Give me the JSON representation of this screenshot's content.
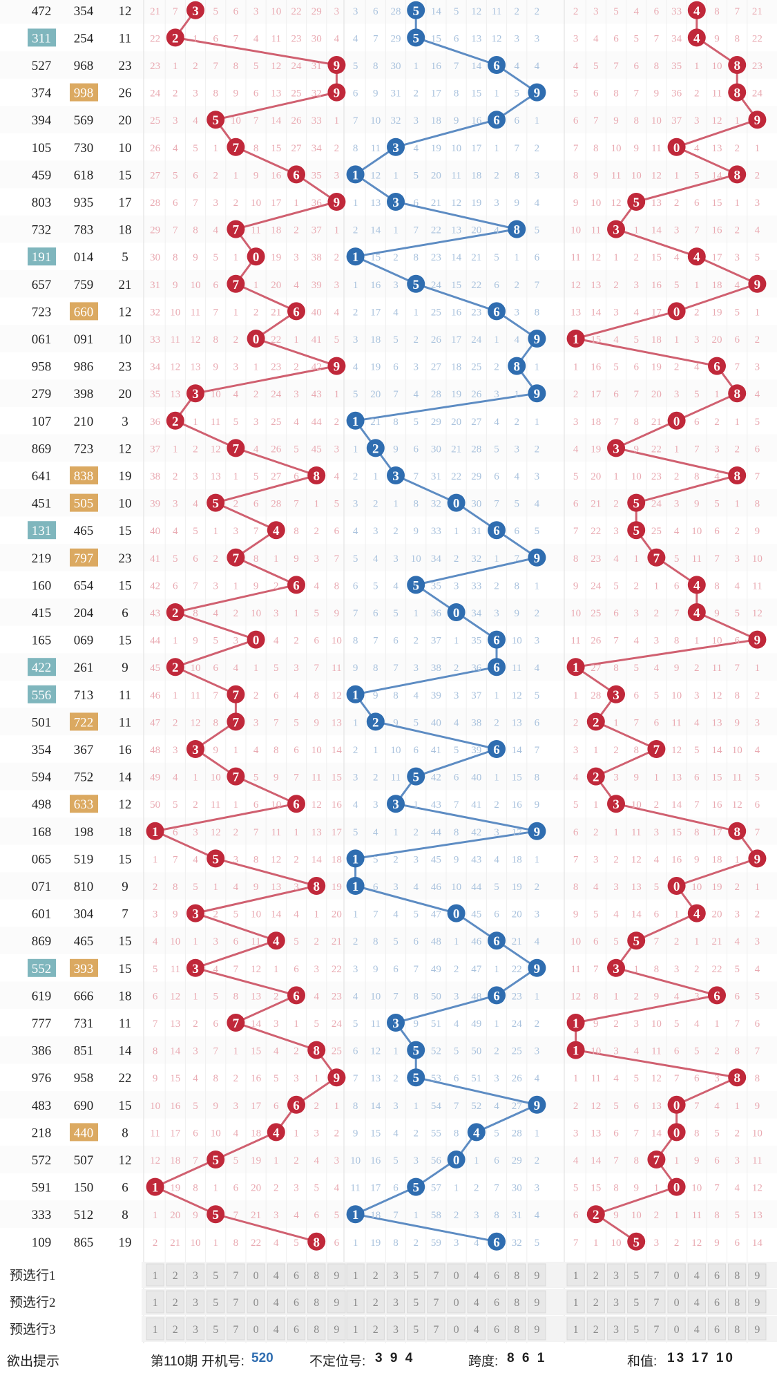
{
  "chart_data": {
    "type": "line",
    "rows": [
      {
        "a": "472",
        "b": "354",
        "s": "12",
        "d": [
          3,
          5,
          4
        ],
        "ha": false,
        "hb": false
      },
      {
        "a": "311",
        "b": "254",
        "s": "11",
        "d": [
          2,
          5,
          4
        ],
        "ha": true,
        "hb": false
      },
      {
        "a": "527",
        "b": "968",
        "s": "23",
        "d": [
          9,
          6,
          8
        ],
        "ha": false,
        "hb": false
      },
      {
        "a": "374",
        "b": "998",
        "s": "26",
        "d": [
          9,
          9,
          8
        ],
        "ha": false,
        "hb": true
      },
      {
        "a": "394",
        "b": "569",
        "s": "20",
        "d": [
          5,
          6,
          9
        ],
        "ha": false,
        "hb": false
      },
      {
        "a": "105",
        "b": "730",
        "s": "10",
        "d": [
          7,
          3,
          0
        ],
        "ha": false,
        "hb": false
      },
      {
        "a": "459",
        "b": "618",
        "s": "15",
        "d": [
          6,
          1,
          8
        ],
        "ha": false,
        "hb": false
      },
      {
        "a": "803",
        "b": "935",
        "s": "17",
        "d": [
          9,
          3,
          5
        ],
        "ha": false,
        "hb": false
      },
      {
        "a": "732",
        "b": "783",
        "s": "18",
        "d": [
          7,
          8,
          3
        ],
        "ha": false,
        "hb": false
      },
      {
        "a": "191",
        "b": "014",
        "s": "5",
        "d": [
          0,
          1,
          4
        ],
        "ha": true,
        "hb": false
      },
      {
        "a": "657",
        "b": "759",
        "s": "21",
        "d": [
          7,
          5,
          9
        ],
        "ha": false,
        "hb": false
      },
      {
        "a": "723",
        "b": "660",
        "s": "12",
        "d": [
          6,
          6,
          0
        ],
        "ha": false,
        "hb": true
      },
      {
        "a": "061",
        "b": "091",
        "s": "10",
        "d": [
          0,
          9,
          1
        ],
        "ha": false,
        "hb": false
      },
      {
        "a": "958",
        "b": "986",
        "s": "23",
        "d": [
          9,
          8,
          6
        ],
        "ha": false,
        "hb": false
      },
      {
        "a": "279",
        "b": "398",
        "s": "20",
        "d": [
          3,
          9,
          8
        ],
        "ha": false,
        "hb": false
      },
      {
        "a": "107",
        "b": "210",
        "s": "3",
        "d": [
          2,
          1,
          0
        ],
        "ha": false,
        "hb": false
      },
      {
        "a": "869",
        "b": "723",
        "s": "12",
        "d": [
          7,
          2,
          3
        ],
        "ha": false,
        "hb": false
      },
      {
        "a": "641",
        "b": "838",
        "s": "19",
        "d": [
          8,
          3,
          8
        ],
        "ha": false,
        "hb": true
      },
      {
        "a": "451",
        "b": "505",
        "s": "10",
        "d": [
          5,
          0,
          5
        ],
        "ha": false,
        "hb": true
      },
      {
        "a": "131",
        "b": "465",
        "s": "15",
        "d": [
          4,
          6,
          5
        ],
        "ha": true,
        "hb": false
      },
      {
        "a": "219",
        "b": "797",
        "s": "23",
        "d": [
          7,
          9,
          7
        ],
        "ha": false,
        "hb": true
      },
      {
        "a": "160",
        "b": "654",
        "s": "15",
        "d": [
          6,
          5,
          4
        ],
        "ha": false,
        "hb": false
      },
      {
        "a": "415",
        "b": "204",
        "s": "6",
        "d": [
          2,
          0,
          4
        ],
        "ha": false,
        "hb": false
      },
      {
        "a": "165",
        "b": "069",
        "s": "15",
        "d": [
          0,
          6,
          9
        ],
        "ha": false,
        "hb": false
      },
      {
        "a": "422",
        "b": "261",
        "s": "9",
        "d": [
          2,
          6,
          1
        ],
        "ha": true,
        "hb": false
      },
      {
        "a": "556",
        "b": "713",
        "s": "11",
        "d": [
          7,
          1,
          3
        ],
        "ha": true,
        "hb": false
      },
      {
        "a": "501",
        "b": "722",
        "s": "11",
        "d": [
          7,
          2,
          2
        ],
        "ha": false,
        "hb": true
      },
      {
        "a": "354",
        "b": "367",
        "s": "16",
        "d": [
          3,
          6,
          7
        ],
        "ha": false,
        "hb": false
      },
      {
        "a": "594",
        "b": "752",
        "s": "14",
        "d": [
          7,
          5,
          2
        ],
        "ha": false,
        "hb": false
      },
      {
        "a": "498",
        "b": "633",
        "s": "12",
        "d": [
          6,
          3,
          3
        ],
        "ha": false,
        "hb": true
      },
      {
        "a": "168",
        "b": "198",
        "s": "18",
        "d": [
          1,
          9,
          8
        ],
        "ha": false,
        "hb": false
      },
      {
        "a": "065",
        "b": "519",
        "s": "15",
        "d": [
          5,
          1,
          9
        ],
        "ha": false,
        "hb": false
      },
      {
        "a": "071",
        "b": "810",
        "s": "9",
        "d": [
          8,
          1,
          0
        ],
        "ha": false,
        "hb": false
      },
      {
        "a": "601",
        "b": "304",
        "s": "7",
        "d": [
          3,
          0,
          4
        ],
        "ha": false,
        "hb": false
      },
      {
        "a": "869",
        "b": "465",
        "s": "15",
        "d": [
          4,
          6,
          5
        ],
        "ha": false,
        "hb": false
      },
      {
        "a": "552",
        "b": "393",
        "s": "15",
        "d": [
          3,
          9,
          3
        ],
        "ha": true,
        "hb": true
      },
      {
        "a": "619",
        "b": "666",
        "s": "18",
        "d": [
          6,
          6,
          6
        ],
        "ha": false,
        "hb": false
      },
      {
        "a": "777",
        "b": "731",
        "s": "11",
        "d": [
          7,
          3,
          1
        ],
        "ha": false,
        "hb": false
      },
      {
        "a": "386",
        "b": "851",
        "s": "14",
        "d": [
          8,
          5,
          1
        ],
        "ha": false,
        "hb": false
      },
      {
        "a": "976",
        "b": "958",
        "s": "22",
        "d": [
          9,
          5,
          8
        ],
        "ha": false,
        "hb": false
      },
      {
        "a": "483",
        "b": "690",
        "s": "15",
        "d": [
          6,
          9,
          0
        ],
        "ha": false,
        "hb": false
      },
      {
        "a": "218",
        "b": "440",
        "s": "8",
        "d": [
          4,
          4,
          0
        ],
        "ha": false,
        "hb": true
      },
      {
        "a": "572",
        "b": "507",
        "s": "12",
        "d": [
          5,
          0,
          7
        ],
        "ha": false,
        "hb": false
      },
      {
        "a": "591",
        "b": "150",
        "s": "6",
        "d": [
          1,
          5,
          0
        ],
        "ha": false,
        "hb": false
      },
      {
        "a": "333",
        "b": "512",
        "s": "8",
        "d": [
          5,
          1,
          2
        ],
        "ha": false,
        "hb": false
      },
      {
        "a": "109",
        "b": "865",
        "s": "19",
        "d": [
          8,
          6,
          5
        ],
        "ha": false,
        "hb": false
      }
    ],
    "col_order": [
      1,
      2,
      3,
      5,
      7,
      0,
      4,
      6,
      8,
      9
    ],
    "preselect_labels": [
      "预选行1",
      "预选行2",
      "预选行3"
    ],
    "colors": {
      "red": "#c0283a",
      "blue": "#2f6db0",
      "teal": "#7fb6bd",
      "orange": "#dba961",
      "miss_red": "#e9aab2",
      "miss_blue": "#a9c2dd",
      "line_red": "#d06070",
      "line_blue": "#5d8cc3"
    }
  },
  "footer": {
    "label": "欲出提示",
    "issue": "第110期 开机号:",
    "issue_val": "520",
    "undet": "不定位号:",
    "undet_val": "3 9 4",
    "span": "跨度:",
    "span_val": "8 6 1",
    "sum": "和值:",
    "sum_val": "13 17 10"
  }
}
